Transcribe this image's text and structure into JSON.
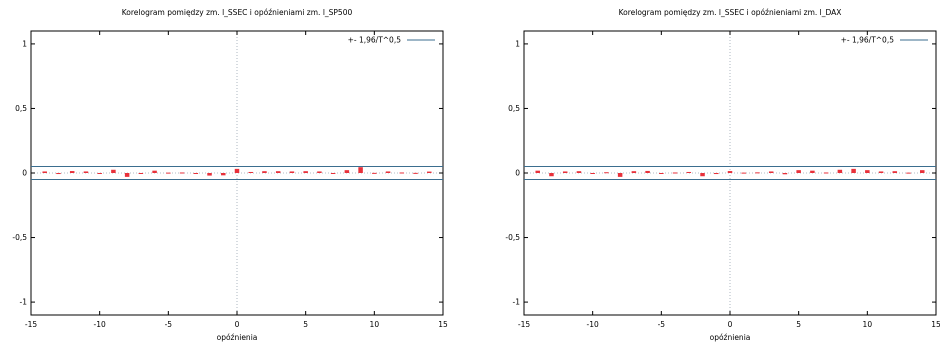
{
  "colors": {
    "bar": "#e8313a",
    "band": "#3b6e8f",
    "axis": "#000000",
    "zero_v": "#9aa6b2"
  },
  "chart_data": [
    {
      "type": "bar",
      "title": "Korelogram pomiędzy zm. l_SSEC i opóźnieniami zm. l_SP500",
      "xlabel": "opóźnienia",
      "ylabel": "",
      "xlim": [
        -15,
        15
      ],
      "ylim": [
        -1.1,
        1.1
      ],
      "x_ticks": [
        "-15",
        "-10",
        "-5",
        "0",
        "5",
        "10",
        "15"
      ],
      "y_ticks": [
        "-1",
        "-0,5",
        "0",
        "0,5",
        "1"
      ],
      "band": 0.05,
      "legend": "+- 1,96/T^0,5",
      "legend_position": "top-right",
      "x": [
        -14,
        -13,
        -12,
        -11,
        -10,
        -9,
        -8,
        -7,
        -6,
        -5,
        -4,
        -3,
        -2,
        -1,
        0,
        1,
        2,
        3,
        4,
        5,
        6,
        7,
        8,
        9,
        10,
        11,
        12,
        13,
        14
      ],
      "values": [
        0.012,
        -0.008,
        0.015,
        0.012,
        -0.003,
        0.025,
        -0.03,
        -0.003,
        0.018,
        0.003,
        0.004,
        -0.005,
        -0.02,
        -0.018,
        0.032,
        0.008,
        0.014,
        0.014,
        0.012,
        0.014,
        0.012,
        -0.005,
        0.022,
        0.045,
        0.001,
        0.012,
        0.004,
        0.001,
        0.011
      ]
    },
    {
      "type": "bar",
      "title": "Korelogram pomiędzy zm. l_SSEC i opóźnieniami zm. l_DAX",
      "xlabel": "opóźnienia",
      "ylabel": "",
      "xlim": [
        -15,
        15
      ],
      "ylim": [
        -1.1,
        1.1
      ],
      "x_ticks": [
        "-15",
        "-10",
        "-5",
        "0",
        "5",
        "10",
        "15"
      ],
      "y_ticks": [
        "-1",
        "-0,5",
        "0",
        "0,5",
        "1"
      ],
      "band": 0.05,
      "legend": "+- 1,96/T^0,5",
      "legend_position": "top-right",
      "x": [
        -14,
        -13,
        -12,
        -11,
        -10,
        -9,
        -8,
        -7,
        -6,
        -5,
        -4,
        -3,
        -2,
        -1,
        0,
        1,
        2,
        3,
        4,
        5,
        6,
        7,
        8,
        9,
        10,
        11,
        12,
        13,
        14
      ],
      "values": [
        0.018,
        -0.025,
        0.012,
        0.014,
        -0.006,
        0.006,
        -0.03,
        0.014,
        0.016,
        -0.004,
        0.004,
        0.008,
        -0.025,
        -0.008,
        0.015,
        0.003,
        0.005,
        0.012,
        -0.01,
        0.022,
        0.018,
        0.004,
        0.025,
        0.032,
        0.022,
        0.012,
        0.014,
        0.003,
        0.022
      ]
    }
  ]
}
